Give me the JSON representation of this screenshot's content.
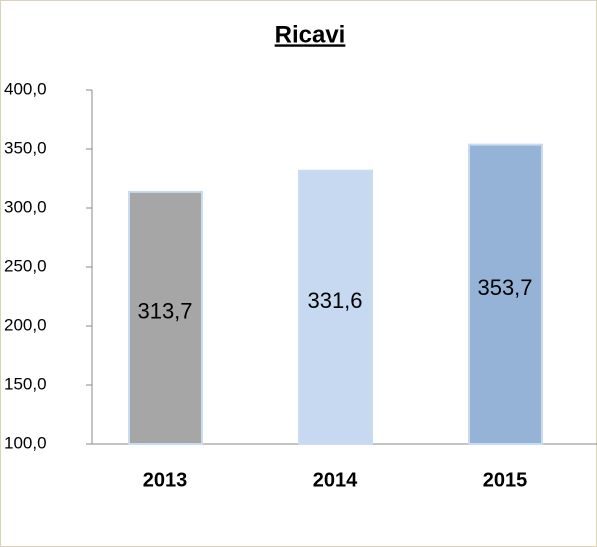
{
  "chart_data": {
    "type": "bar",
    "title": "Ricavi",
    "categories": [
      "2013",
      "2014",
      "2015"
    ],
    "values": [
      313.7,
      331.6,
      353.7
    ],
    "value_labels": [
      "313,7",
      "331,6",
      "353,7"
    ],
    "colors": [
      "#a6a6a6",
      "#c6d9f1",
      "#95b3d7"
    ],
    "ylim": [
      100,
      400
    ],
    "yticks": [
      {
        "value": 100,
        "label": "100,0"
      },
      {
        "value": 150,
        "label": "150,0"
      },
      {
        "value": 200,
        "label": "200,0"
      },
      {
        "value": 250,
        "label": "250,0"
      },
      {
        "value": 300,
        "label": "300,0"
      },
      {
        "value": 350,
        "label": "350,0"
      },
      {
        "value": 400,
        "label": "400,0"
      }
    ],
    "grid": false
  }
}
